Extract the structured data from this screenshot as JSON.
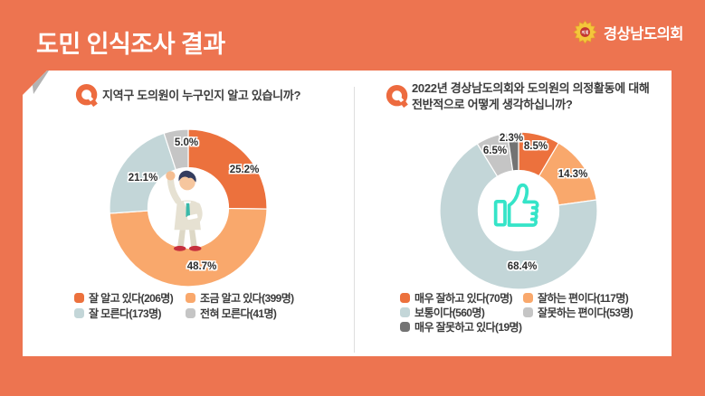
{
  "header": {
    "title": "도민 인식조사 결과",
    "org": "경상남도의회",
    "badge": "의회"
  },
  "colors": {
    "background": "#ED7450",
    "accent_orange": "#EC713D",
    "light_orange": "#F9A86C",
    "light_blue": "#C3D6D8",
    "light_gray": "#C5C5C5",
    "dark_gray": "#737373",
    "thumb_teal": "#35E4C8",
    "q_icon": "#ED6B3F"
  },
  "chart_data": [
    {
      "type": "pie",
      "variant": "donut",
      "question_lines": [
        "지역구 도의원이 누구인지 알고 있습니까?"
      ],
      "center_icon": "person-raising-hand-icon",
      "start_angle_deg": 0,
      "direction": "clockwise",
      "slices": [
        {
          "label": "잘 알고 있다",
          "count": 206,
          "value": 25.2,
          "pct_label": "25.2%",
          "legend_label": "잘 알고 있다(206명)",
          "color": "#EC713D"
        },
        {
          "label": "조금 알고 있다",
          "count": 399,
          "value": 48.7,
          "pct_label": "48.7%",
          "legend_label": "조금 알고 있다(399명)",
          "color": "#F9A86C"
        },
        {
          "label": "잘 모른다",
          "count": 173,
          "value": 21.1,
          "pct_label": "21.1%",
          "legend_label": "잘 모른다(173명)",
          "color": "#C3D6D8"
        },
        {
          "label": "전혀 모른다",
          "count": 41,
          "value": 5.0,
          "pct_label": "5.0%",
          "legend_label": "전혀 모른다(41명)",
          "color": "#C5C5C5"
        }
      ]
    },
    {
      "type": "pie",
      "variant": "donut",
      "question_lines": [
        "2022년 경상남도의회와 도의원의 의정활동에 대해",
        "전반적으로 어떻게 생각하십니까?"
      ],
      "center_icon": "thumbs-up-icon",
      "start_angle_deg": 0,
      "direction": "clockwise",
      "slices": [
        {
          "label": "매우 잘하고 있다",
          "count": 70,
          "value": 8.5,
          "pct_label": "8.5%",
          "legend_label": "매우 잘하고 있다(70명)",
          "color": "#EC713D"
        },
        {
          "label": "잘하는 편이다",
          "count": 117,
          "value": 14.3,
          "pct_label": "14.3%",
          "legend_label": "잘하는 편이다(117명)",
          "color": "#F9A86C"
        },
        {
          "label": "보통이다",
          "count": 560,
          "value": 68.4,
          "pct_label": "68.4%",
          "legend_label": "보통이다(560명)",
          "color": "#C3D6D8"
        },
        {
          "label": "잘못하는 편이다",
          "count": 53,
          "value": 6.5,
          "pct_label": "6.5%",
          "legend_label": "잘못하는 편이다(53명)",
          "color": "#C5C5C5"
        },
        {
          "label": "매우 잘못하고 있다",
          "count": 19,
          "value": 2.3,
          "pct_label": "2.3%",
          "legend_label": "매우 잘못하고 있다(19명)",
          "color": "#737373"
        }
      ]
    }
  ]
}
